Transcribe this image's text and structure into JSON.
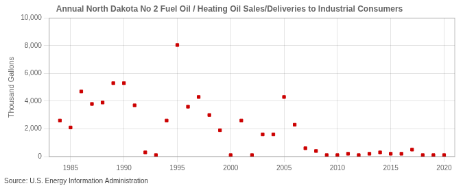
{
  "chart_data": {
    "type": "scatter",
    "title": "Annual North Dakota No 2 Fuel Oil / Heating Oil Sales/Deliveries to Industrial Consumers",
    "ylabel": "Thousand Gallons",
    "annotations": [
      "Source: U.S. Energy Information Administration"
    ],
    "x": [
      1984,
      1985,
      1986,
      1987,
      1988,
      1989,
      1990,
      1991,
      1992,
      1993,
      1994,
      1995,
      1996,
      1997,
      1998,
      1999,
      2000,
      2001,
      2002,
      2003,
      2004,
      2005,
      2006,
      2007,
      2008,
      2009,
      2010,
      2011,
      2012,
      2013,
      2014,
      2015,
      2016,
      2017,
      2018,
      2019,
      2020
    ],
    "values": [
      2600,
      2100,
      4700,
      3800,
      3900,
      5300,
      5300,
      3700,
      300,
      100,
      2600,
      8050,
      3600,
      4300,
      3000,
      1900,
      100,
      2600,
      100,
      1600,
      1600,
      4300,
      2300,
      600,
      400,
      100,
      100,
      200,
      100,
      200,
      300,
      200,
      200,
      500,
      100,
      100,
      100
    ],
    "color": "#cc0000",
    "marker": "square",
    "xlim": [
      1983,
      2021
    ],
    "xticks": [
      1985,
      1990,
      1995,
      2000,
      2005,
      2010,
      2015,
      2020
    ],
    "ylim": [
      0,
      10000
    ],
    "yticks": [
      0,
      {
        "value": 2000,
        "label": "2,000"
      },
      {
        "value": 4000,
        "label": "4,000"
      },
      {
        "value": 6000,
        "label": "6,000"
      },
      {
        "value": 8000,
        "label": "8,000"
      },
      {
        "value": 10000,
        "label": "10,000"
      }
    ],
    "grid": true
  }
}
